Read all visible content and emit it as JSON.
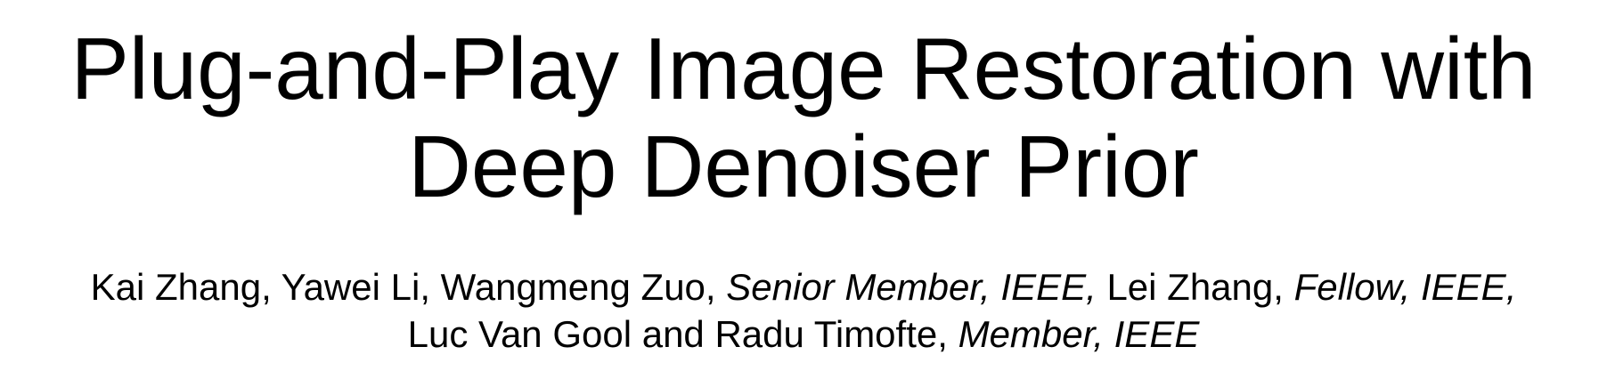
{
  "title": {
    "line1": "Plug-and-Play Image Restoration with",
    "line2": "Deep Denoiser Prior"
  },
  "authors": {
    "line1": {
      "a1": "Kai Zhang, Yawei Li, Wangmeng Zuo, ",
      "a1_title": "Senior Member, IEEE,",
      "a2": " Lei Zhang, ",
      "a2_title": "Fellow, IEEE,"
    },
    "line2": {
      "a3": "Luc Van Gool and Radu Timofte, ",
      "a3_title": "Member, IEEE"
    }
  }
}
